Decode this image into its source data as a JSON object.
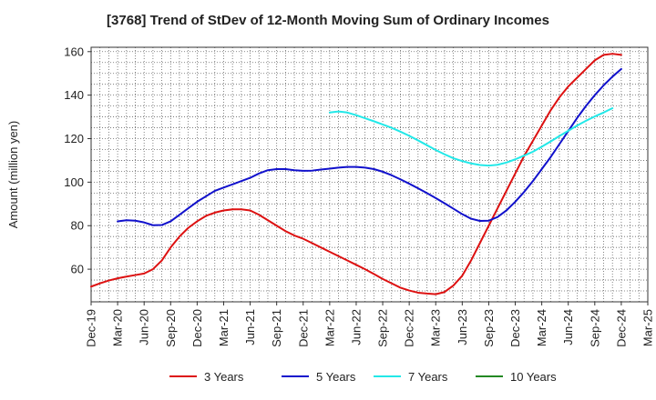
{
  "chart_data": {
    "type": "line",
    "title": "[3768]  Trend of StDev of 12-Month Moving Sum of Ordinary Incomes",
    "ylabel": "Amount (million yen)",
    "xlabel": "",
    "ylim": [
      45,
      162
    ],
    "yticks": [
      60,
      80,
      100,
      120,
      140,
      160
    ],
    "grid": true,
    "legend_position": "bottom",
    "x_months": [
      "Dec-19",
      "Jan-20",
      "Feb-20",
      "Mar-20",
      "Apr-20",
      "May-20",
      "Jun-20",
      "Jul-20",
      "Aug-20",
      "Sep-20",
      "Oct-20",
      "Nov-20",
      "Dec-20",
      "Jan-21",
      "Feb-21",
      "Mar-21",
      "Apr-21",
      "May-21",
      "Jun-21",
      "Jul-21",
      "Aug-21",
      "Sep-21",
      "Oct-21",
      "Nov-21",
      "Dec-21",
      "Jan-22",
      "Feb-22",
      "Mar-22",
      "Apr-22",
      "May-22",
      "Jun-22",
      "Jul-22",
      "Aug-22",
      "Sep-22",
      "Oct-22",
      "Nov-22",
      "Dec-22",
      "Jan-23",
      "Feb-23",
      "Mar-23",
      "Apr-23",
      "May-23",
      "Jun-23",
      "Jul-23",
      "Aug-23",
      "Sep-23",
      "Oct-23",
      "Nov-23",
      "Dec-23",
      "Jan-24",
      "Feb-24",
      "Mar-24",
      "Apr-24",
      "May-24",
      "Jun-24",
      "Jul-24",
      "Aug-24",
      "Sep-24",
      "Oct-24",
      "Nov-24",
      "Dec-24",
      "Jan-25",
      "Feb-25",
      "Mar-25"
    ],
    "x_tick_labels": [
      "Dec-19",
      "Mar-20",
      "Jun-20",
      "Sep-20",
      "Dec-20",
      "Mar-21",
      "Jun-21",
      "Sep-21",
      "Dec-21",
      "Mar-22",
      "Jun-22",
      "Sep-22",
      "Dec-22",
      "Mar-23",
      "Jun-23",
      "Sep-23",
      "Dec-23",
      "Mar-24",
      "Jun-24",
      "Sep-24",
      "Dec-24",
      "Mar-25"
    ],
    "series": [
      {
        "name": "3 Years",
        "color": "#dd1111",
        "start": "Dec-19",
        "values": [
          52,
          53.5,
          54.8,
          55.8,
          56.6,
          57.3,
          58,
          60,
          64,
          70,
          75,
          79,
          82,
          84.5,
          86,
          87,
          87.5,
          87.5,
          87,
          85,
          82.5,
          80,
          77.5,
          75.5,
          74,
          72,
          70,
          68,
          66,
          64,
          62,
          60,
          57.8,
          55.5,
          53.5,
          51.5,
          50.2,
          49.2,
          48.8,
          48.5,
          49.5,
          52.5,
          57,
          64,
          72,
          80,
          88,
          96,
          104,
          112,
          119,
          126,
          133,
          139,
          144,
          148,
          152,
          156,
          158.5,
          159,
          158.5
        ]
      },
      {
        "name": "5 Years",
        "color": "#1111cc",
        "start": "Mar-20",
        "values": [
          82,
          82.5,
          82.3,
          81.5,
          80.2,
          80.3,
          82,
          85,
          88,
          91,
          93.5,
          96,
          97.5,
          99,
          100.5,
          102,
          104,
          105.5,
          106,
          106,
          105.5,
          105.2,
          105.3,
          105.8,
          106.2,
          106.7,
          107,
          107,
          106.7,
          106,
          104.8,
          103.2,
          101.3,
          99.3,
          97.2,
          95,
          92.7,
          90.3,
          87.8,
          85.3,
          83.2,
          82.2,
          82.3,
          84,
          87,
          91,
          95.5,
          100.5,
          106,
          111.5,
          117.5,
          123.5,
          129.5,
          135,
          140,
          144.5,
          148.5,
          152
        ]
      },
      {
        "name": "7 Years",
        "color": "#22e8e8",
        "start": "Mar-22",
        "values": [
          132,
          132.5,
          132,
          130.8,
          129.4,
          128,
          126.5,
          125,
          123.2,
          121.3,
          119.2,
          117,
          114.8,
          112.8,
          111,
          109.7,
          108.6,
          107.9,
          107.6,
          108,
          109,
          110.5,
          112.2,
          114,
          116.3,
          118.7,
          121.2,
          123.6,
          126,
          128.2,
          130.2,
          132,
          134
        ]
      },
      {
        "name": "10 Years",
        "color": "#228822",
        "start": "Dec-24",
        "values": []
      }
    ]
  }
}
